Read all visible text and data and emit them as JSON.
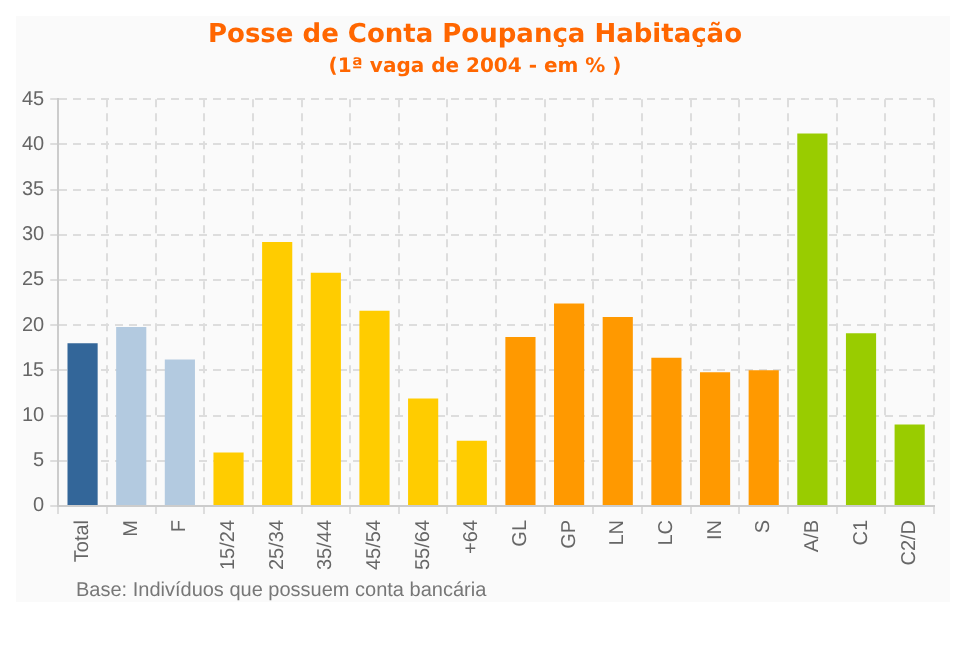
{
  "chart_data": {
    "type": "bar",
    "title": "Posse de Conta Poupança Habitação",
    "subtitle": "(1ª vaga de 2004 - em % )",
    "categories": [
      "Total",
      "M",
      "F",
      "15/24",
      "25/34",
      "35/44",
      "45/54",
      "55/64",
      "+64",
      "GL",
      "GP",
      "LN",
      "LC",
      "IN",
      "S",
      "A/B",
      "C1",
      "C2/D"
    ],
    "values": [
      18,
      19.8,
      16.2,
      5.9,
      29.2,
      25.8,
      21.6,
      11.9,
      7.2,
      18.7,
      22.4,
      20.9,
      16.4,
      14.8,
      15,
      41.2,
      19.1,
      9
    ],
    "colors": [
      "#336699",
      "#b3cae0",
      "#b3cae0",
      "#ffcc00",
      "#ffcc00",
      "#ffcc00",
      "#ffcc00",
      "#ffcc00",
      "#ffcc00",
      "#ff9900",
      "#ff9900",
      "#ff9900",
      "#ff9900",
      "#ff9900",
      "#ff9900",
      "#99cc00",
      "#99cc00",
      "#99cc00"
    ],
    "ylim": [
      0,
      45
    ],
    "yticks": [
      0,
      5,
      10,
      15,
      20,
      25,
      30,
      35,
      40,
      45
    ],
    "grid": true,
    "annotations": [
      "Base: Indivíduos que possuem conta bancária"
    ]
  }
}
